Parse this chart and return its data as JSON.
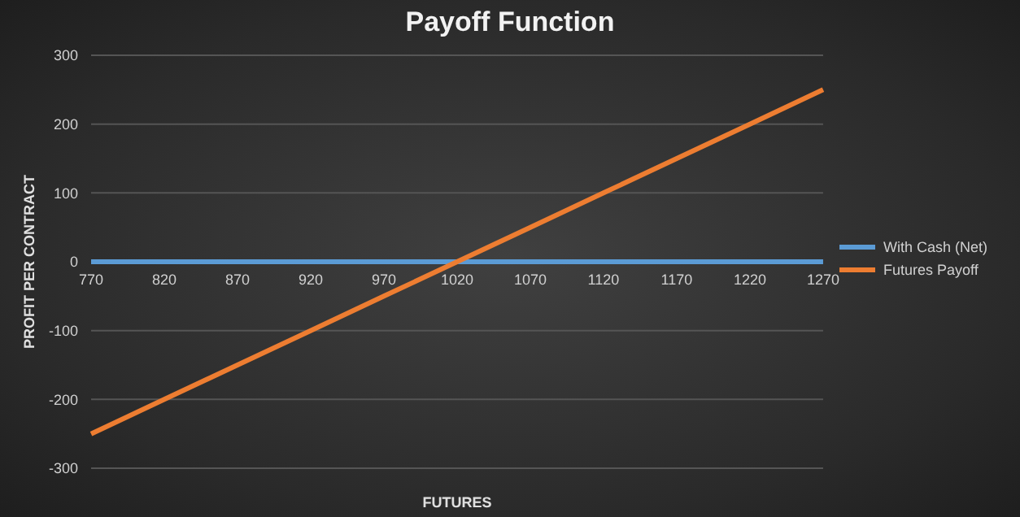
{
  "chart_data": {
    "type": "line",
    "title": "Payoff Function",
    "xlabel": "FUTURES",
    "ylabel": "PROFIT PER CONTRACT",
    "categories": [
      "770",
      "820",
      "870",
      "920",
      "970",
      "1020",
      "1070",
      "1120",
      "1170",
      "1220",
      "1270"
    ],
    "series": [
      {
        "name": "With Cash (Net)",
        "color": "#5b9bd5",
        "values": [
          0,
          0,
          0,
          0,
          0,
          0,
          0,
          0,
          0,
          0,
          0
        ]
      },
      {
        "name": "Futures Payoff",
        "color": "#ed7d31",
        "values": [
          -250,
          -200,
          -150,
          -100,
          -50,
          0,
          50,
          100,
          150,
          200,
          250
        ]
      }
    ],
    "ylim": [
      -300,
      300
    ],
    "yticks": [
      -300,
      -200,
      -100,
      0,
      100,
      200,
      300
    ],
    "grid": "y",
    "legend": "right",
    "marker": "none",
    "line_style": "solid"
  }
}
